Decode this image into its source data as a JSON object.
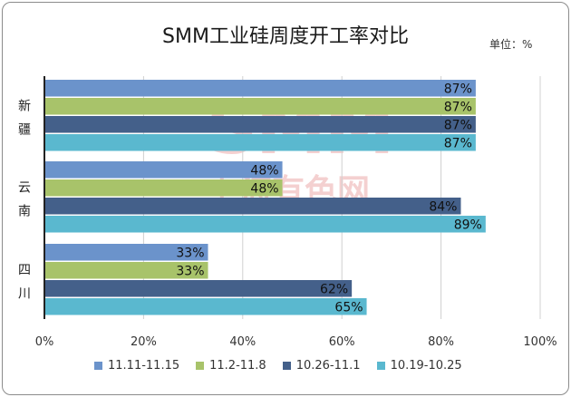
{
  "chart_data": {
    "type": "bar",
    "orientation": "horizontal",
    "title": "SMM工业硅周度开工率对比",
    "unit": "单位：%",
    "categories": [
      {
        "label_chars": [
          "新",
          "疆"
        ]
      },
      {
        "label_chars": [
          "云",
          "南"
        ]
      },
      {
        "label_chars": [
          "四",
          "川"
        ]
      }
    ],
    "series": [
      {
        "name": "11.11-11.15",
        "color": "#6b93cb",
        "values": [
          87,
          48,
          33
        ]
      },
      {
        "name": "11.2-11.8",
        "color": "#a8c36a",
        "values": [
          87,
          48,
          33
        ]
      },
      {
        "name": "10.26-11.1",
        "color": "#44608a",
        "values": [
          87,
          84,
          62
        ]
      },
      {
        "name": "10.19-10.25",
        "color": "#5ab8cf",
        "values": [
          87,
          89,
          65
        ]
      }
    ],
    "xlim": [
      0,
      100
    ],
    "xticks": [
      "0%",
      "20%",
      "40%",
      "60%",
      "80%",
      "100%"
    ],
    "value_suffix": "%",
    "grid": true,
    "legend_position": "bottom"
  },
  "watermark": {
    "big": "SMM",
    "small": "上海有色网",
    "color": "#e27a7a"
  }
}
